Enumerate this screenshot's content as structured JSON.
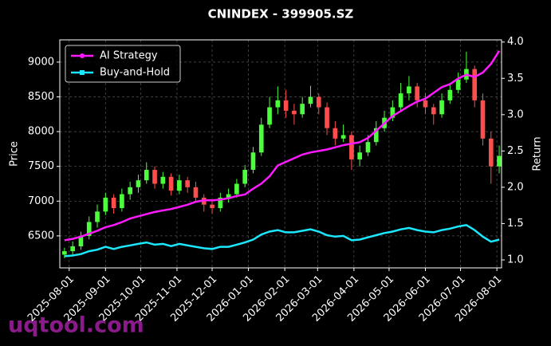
{
  "chart_data": {
    "type": "candlestick",
    "title": "CNINDEX - 399905.SZ",
    "ylabel": "Price",
    "y2label": "Return",
    "watermark": "uqtool.com",
    "x": [
      "2025-07-28",
      "2025-08-04",
      "2025-08-11",
      "2025-08-18",
      "2025-08-25",
      "2025-09-01",
      "2025-09-08",
      "2025-09-15",
      "2025-09-22",
      "2025-09-29",
      "2025-10-06",
      "2025-10-13",
      "2025-10-20",
      "2025-10-27",
      "2025-11-03",
      "2025-11-10",
      "2025-11-17",
      "2025-11-24",
      "2025-12-01",
      "2025-12-08",
      "2025-12-15",
      "2025-12-22",
      "2025-12-29",
      "2026-01-05",
      "2026-01-12",
      "2026-01-19",
      "2026-01-26",
      "2026-02-02",
      "2026-02-09",
      "2026-02-16",
      "2026-02-23",
      "2026-03-02",
      "2026-03-09",
      "2026-03-16",
      "2026-03-23",
      "2026-03-30",
      "2026-04-06",
      "2026-04-13",
      "2026-04-20",
      "2026-04-27",
      "2026-05-04",
      "2026-05-11",
      "2026-05-18",
      "2026-05-25",
      "2026-06-01",
      "2026-06-08",
      "2026-06-15",
      "2026-06-22",
      "2026-06-29",
      "2026-07-06",
      "2026-07-13",
      "2026-07-20",
      "2026-07-27",
      "2026-08-03"
    ],
    "open": [
      6230,
      6280,
      6350,
      6500,
      6700,
      6850,
      7050,
      6900,
      7100,
      7200,
      7300,
      7450,
      7250,
      7350,
      7150,
      7300,
      7200,
      7050,
      6950,
      6900,
      7050,
      7100,
      7250,
      7450,
      7700,
      8100,
      8350,
      8450,
      8300,
      8250,
      8400,
      8500,
      8350,
      8050,
      7900,
      7950,
      7600,
      7700,
      7850,
      8050,
      8200,
      8350,
      8550,
      8650,
      8450,
      8350,
      8250,
      8450,
      8600,
      8750,
      8900,
      8450,
      7900,
      7500
    ],
    "high": [
      6330,
      6420,
      6560,
      6780,
      6950,
      7120,
      7100,
      7180,
      7280,
      7380,
      7560,
      7500,
      7420,
      7400,
      7380,
      7350,
      7280,
      7100,
      7020,
      7120,
      7180,
      7320,
      7520,
      7780,
      8200,
      8500,
      8650,
      8600,
      8400,
      8500,
      8660,
      8550,
      8420,
      8150,
      8100,
      8000,
      7800,
      7950,
      8150,
      8300,
      8450,
      8700,
      8800,
      8700,
      8550,
      8400,
      8550,
      8700,
      8850,
      9150,
      8950,
      8550,
      8000,
      7800
    ],
    "low": [
      6180,
      6230,
      6300,
      6450,
      6620,
      6800,
      6820,
      6850,
      7020,
      7120,
      7250,
      7180,
      7180,
      7080,
      7100,
      7120,
      6980,
      6850,
      6820,
      6850,
      6980,
      7050,
      7200,
      7400,
      7650,
      8050,
      8250,
      8200,
      8100,
      8200,
      8350,
      8250,
      7950,
      7800,
      7850,
      7450,
      7500,
      7650,
      7800,
      8000,
      8150,
      8300,
      8450,
      8350,
      8250,
      8100,
      8200,
      8400,
      8550,
      8700,
      8350,
      7800,
      7250,
      7400
    ],
    "close": [
      6280,
      6350,
      6500,
      6700,
      6850,
      7050,
      6900,
      7100,
      7200,
      7300,
      7450,
      7250,
      7350,
      7150,
      7300,
      7200,
      7050,
      6950,
      6900,
      7050,
      7100,
      7250,
      7450,
      7700,
      8100,
      8350,
      8450,
      8300,
      8250,
      8400,
      8500,
      8350,
      8050,
      7900,
      7950,
      7600,
      7700,
      7850,
      8050,
      8200,
      8350,
      8550,
      8650,
      8450,
      8350,
      8250,
      8450,
      8600,
      8750,
      8900,
      8450,
      7900,
      7500,
      7650
    ],
    "up_color": "#4cff3c",
    "down_color": "#ff4d4d",
    "series": [
      {
        "name": "AI Strategy",
        "color": "#ff1aff",
        "axis": "y2",
        "values": [
          1.27,
          1.29,
          1.32,
          1.36,
          1.4,
          1.45,
          1.48,
          1.52,
          1.57,
          1.6,
          1.63,
          1.66,
          1.68,
          1.7,
          1.73,
          1.76,
          1.8,
          1.82,
          1.82,
          1.83,
          1.85,
          1.88,
          1.9,
          1.98,
          2.05,
          2.15,
          2.3,
          2.35,
          2.4,
          2.45,
          2.48,
          2.5,
          2.52,
          2.55,
          2.58,
          2.6,
          2.62,
          2.68,
          2.78,
          2.88,
          2.98,
          3.05,
          3.12,
          3.18,
          3.22,
          3.3,
          3.38,
          3.42,
          3.5,
          3.55,
          3.52,
          3.58,
          3.7,
          3.88
        ]
      },
      {
        "name": "Buy-and-Hold",
        "color": "#1ae8ff",
        "axis": "y2",
        "values": [
          1.05,
          1.06,
          1.08,
          1.12,
          1.14,
          1.18,
          1.15,
          1.18,
          1.2,
          1.22,
          1.24,
          1.21,
          1.22,
          1.19,
          1.22,
          1.2,
          1.18,
          1.16,
          1.15,
          1.18,
          1.18,
          1.21,
          1.24,
          1.28,
          1.35,
          1.39,
          1.41,
          1.38,
          1.38,
          1.4,
          1.42,
          1.39,
          1.34,
          1.32,
          1.33,
          1.27,
          1.28,
          1.31,
          1.34,
          1.37,
          1.39,
          1.42,
          1.44,
          1.41,
          1.39,
          1.38,
          1.41,
          1.43,
          1.46,
          1.48,
          1.41,
          1.32,
          1.25,
          1.28
        ]
      }
    ],
    "xlim": [
      "2025-07-24",
      "2026-08-05"
    ],
    "xticks": [
      "2025-08-01",
      "2025-09-01",
      "2025-10-01",
      "2025-11-01",
      "2025-12-01",
      "2026-01-01",
      "2026-02-01",
      "2026-03-01",
      "2026-04-01",
      "2026-05-01",
      "2026-06-01",
      "2026-07-01",
      "2026-08-01"
    ],
    "ylim": [
      6040,
      9320
    ],
    "yticks": [
      6500,
      7000,
      7500,
      8000,
      8500,
      9000
    ],
    "y2lim": [
      0.89,
      4.03
    ],
    "y2ticks": [
      {
        "value": 1,
        "label": "1.0"
      },
      1.5,
      {
        "value": 2,
        "label": "2.0"
      },
      2.5,
      {
        "value": 3,
        "label": "3.0"
      },
      3.5,
      {
        "value": 4,
        "label": "4.0"
      }
    ],
    "grid": true,
    "legend": "upper left"
  }
}
